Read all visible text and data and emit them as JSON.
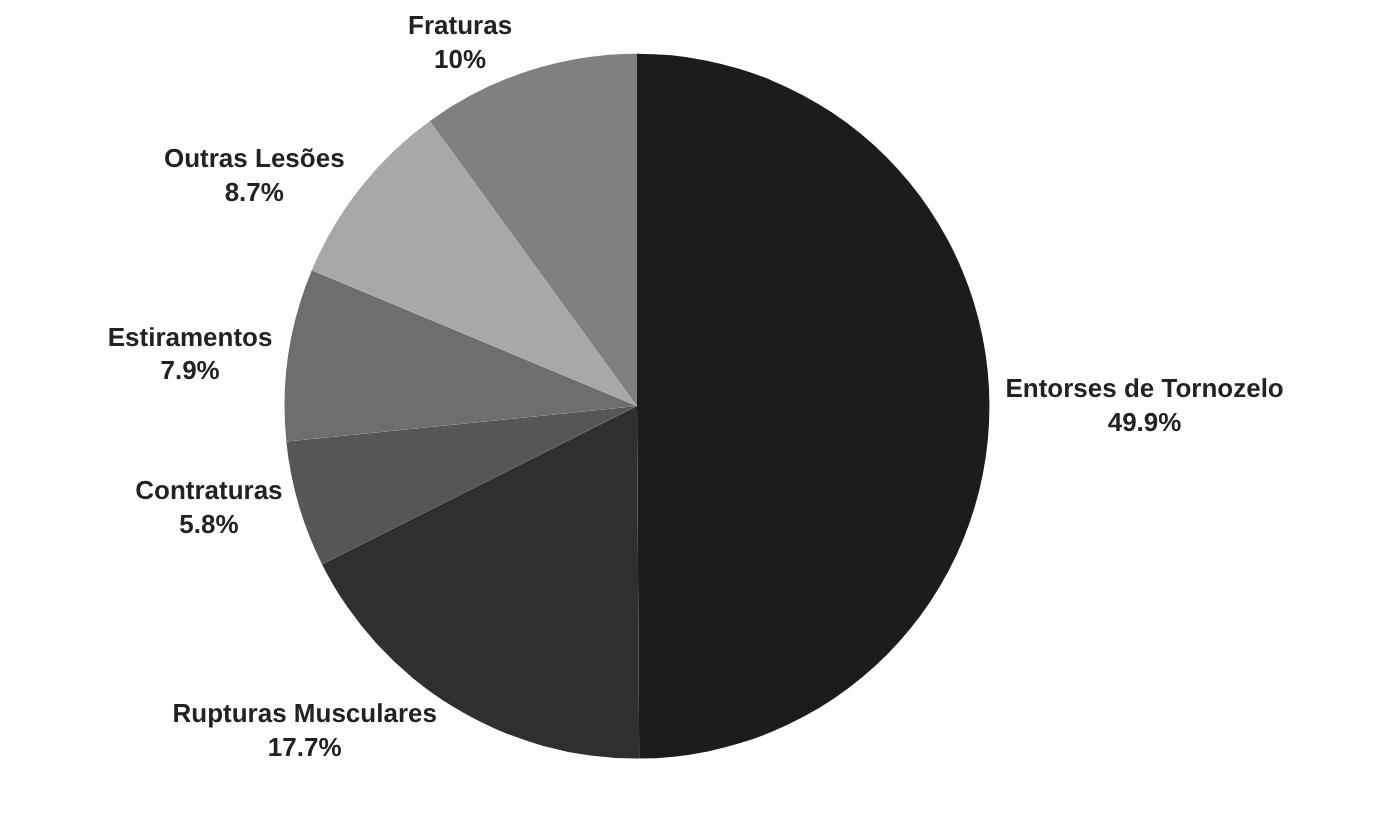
{
  "chart_data": {
    "type": "pie",
    "categories": [
      "Entorses de Tornozelo",
      "Rupturas Musculares",
      "Contraturas",
      "Estiramentos",
      "Outras Lesões",
      "Fraturas"
    ],
    "values": [
      49.9,
      17.7,
      5.8,
      7.9,
      8.7,
      10
    ],
    "value_labels": [
      "49.9%",
      "17.7%",
      "5.8%",
      "7.9%",
      "8.7%",
      "10%"
    ],
    "colors": [
      "#1c1c1c",
      "#2f2f2f",
      "#565656",
      "#6e6e6e",
      "#a8a8a8",
      "#808080"
    ],
    "legend": false
  }
}
